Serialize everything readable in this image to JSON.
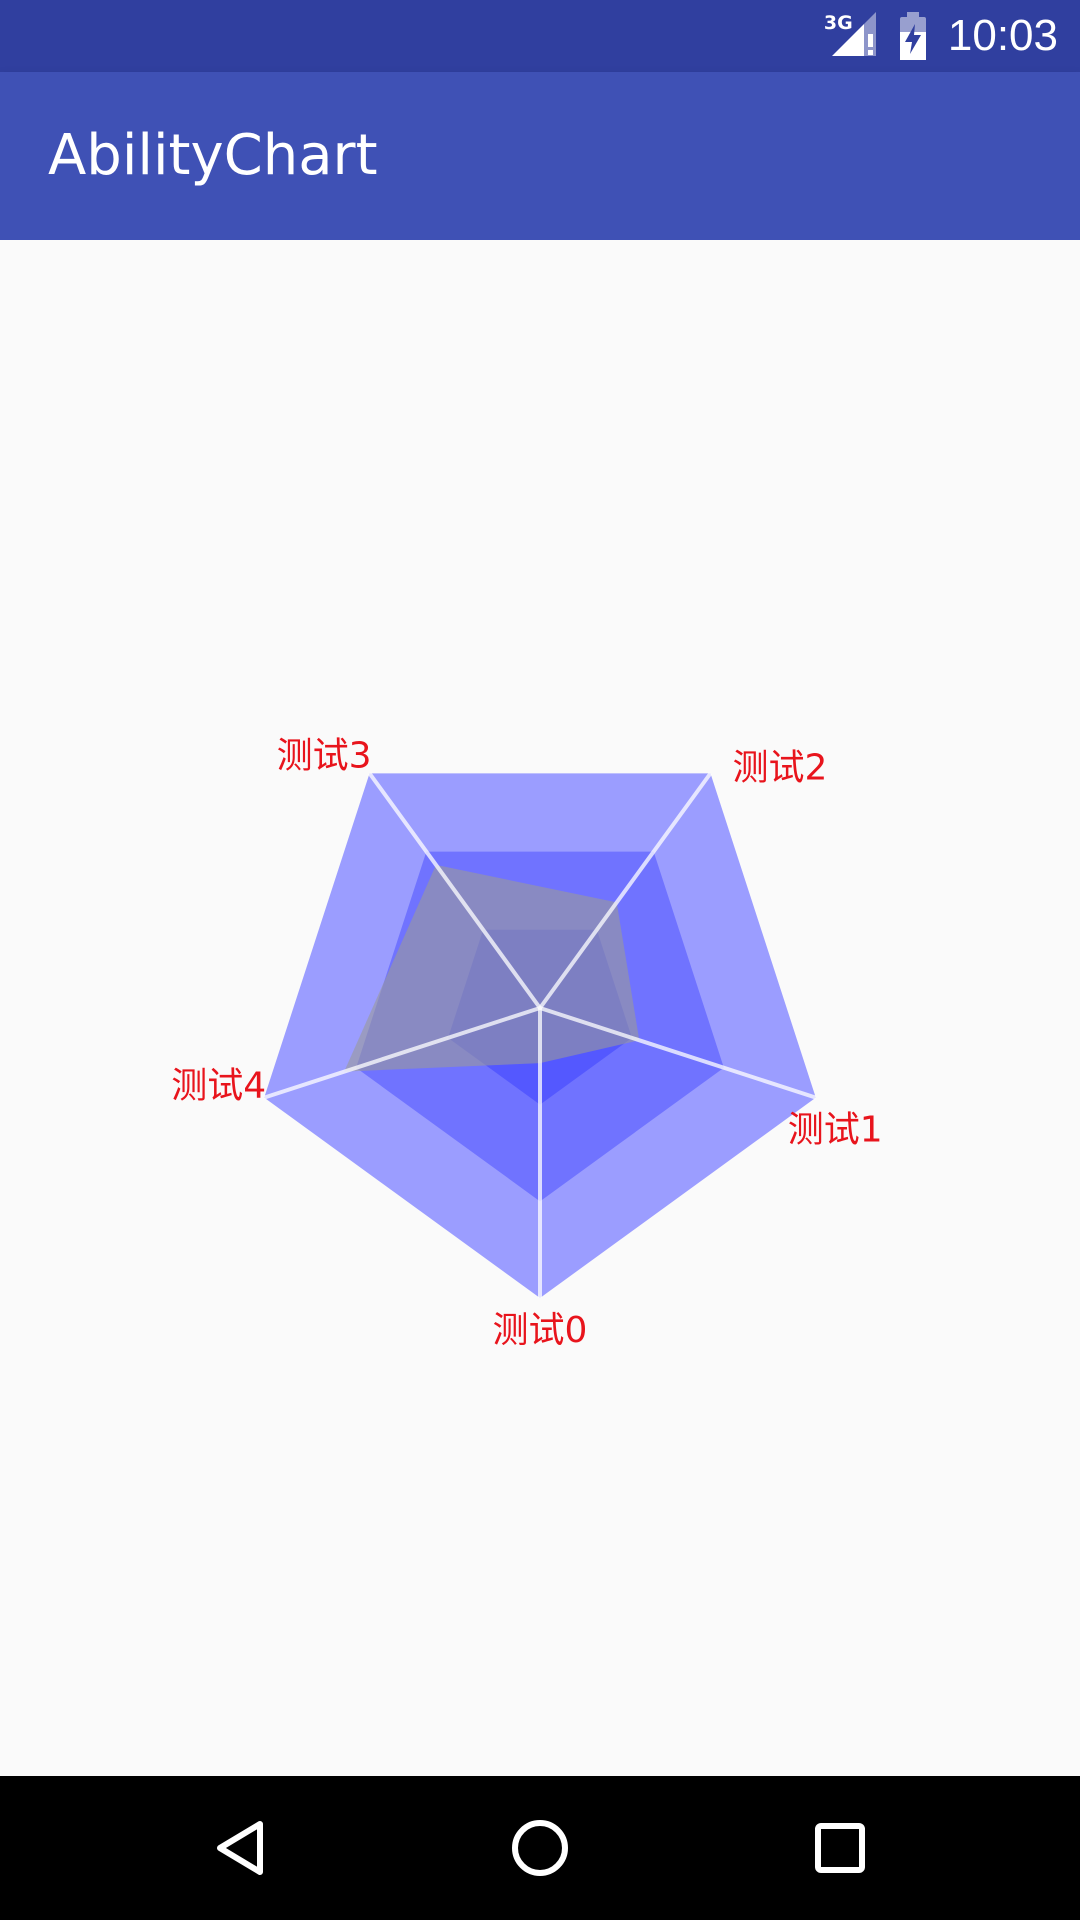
{
  "status_bar": {
    "network_label": "3G",
    "time": "10:03"
  },
  "app_bar": {
    "title": "AbilityChart"
  },
  "colors": {
    "status_bar": "#303f9f",
    "app_bar": "#3f51b5",
    "ring_outer": "#9b9dff",
    "ring_middle": "#7073ff",
    "ring_inner": "#5458ff",
    "data_polygon": "#999999",
    "axis_line": "#ffffff",
    "label_text": "#e8141c"
  },
  "chart_data": {
    "type": "radar",
    "axes": [
      "测试0",
      "测试1",
      "测试2",
      "测试3",
      "测试4"
    ],
    "levels": 3,
    "max": 1.0,
    "series": [
      {
        "values": [
          0.19,
          0.36,
          0.45,
          0.61,
          0.71
        ]
      }
    ],
    "grid": true,
    "legend": "none"
  },
  "nav_bar": {
    "back_icon": "back-triangle-icon",
    "home_icon": "home-circle-icon",
    "recents_icon": "recents-square-icon"
  }
}
